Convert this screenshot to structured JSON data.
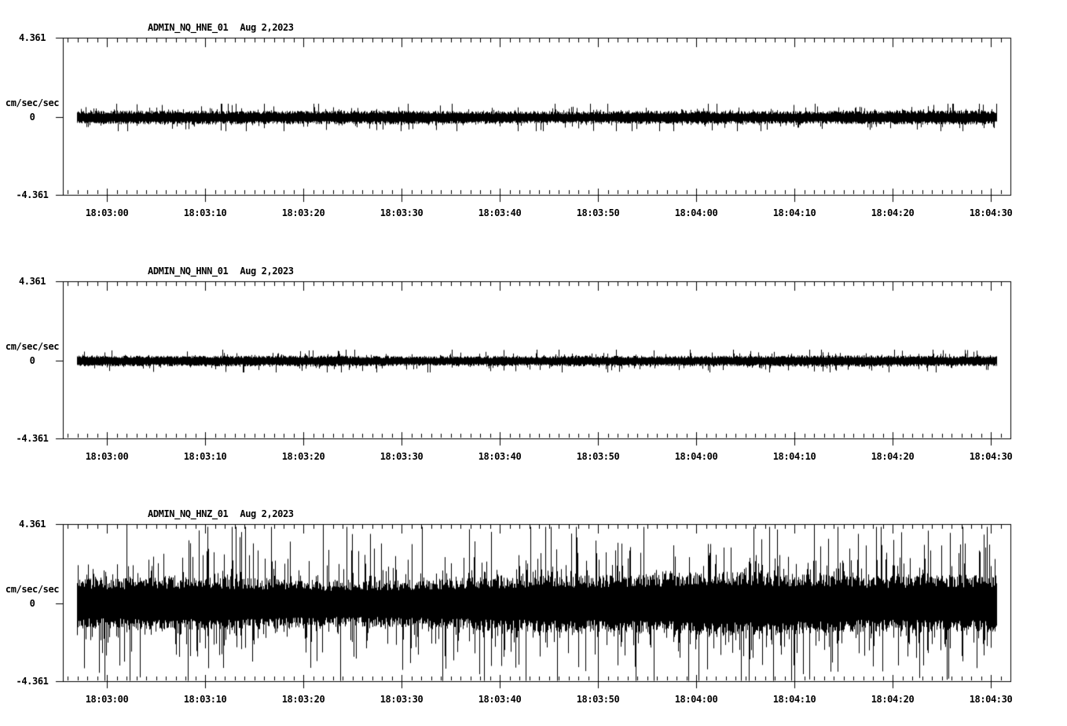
{
  "figure": {
    "background_color": "#ffffff",
    "ink_color": "#000000"
  },
  "chart_data": [
    {
      "type": "line",
      "title": "ADMIN_NQ_HNE_01",
      "subtitle": "Aug 2,2023",
      "ylabel": "cm/sec/sec",
      "ylim": [
        -4.361,
        4.361
      ],
      "yticks": [
        4.361,
        0,
        -4.361
      ],
      "ytick_labels": [
        "4.361",
        "0",
        "-4.361"
      ],
      "xtick_labels": [
        "18:03:00",
        "18:03:10",
        "18:03:20",
        "18:03:30",
        "18:03:40",
        "18:03:50",
        "18:04:00",
        "18:04:10",
        "18:04:20",
        "18:04:30"
      ],
      "x_major_interval_seconds": 10,
      "x_minor_interval_seconds": 1,
      "grid": false,
      "legend": false,
      "series": [
        {
          "name": "ADMIN_NQ_HNE_01",
          "kind": "continuous seismic noise (min/max envelope)",
          "mean_value": 0,
          "baseline_amplitude": 0.17,
          "jitter_amplitude": 0.17,
          "spike_probability": 0.15,
          "spike_scale": 0.25,
          "peak_amplitude": 0.74,
          "ramp_gain": 0,
          "seed": 11
        }
      ]
    },
    {
      "type": "line",
      "title": "ADMIN_NQ_HNN_01",
      "subtitle": "Aug 2,2023",
      "ylabel": "cm/sec/sec",
      "ylim": [
        -4.361,
        4.361
      ],
      "yticks": [
        4.361,
        0,
        -4.361
      ],
      "ytick_labels": [
        "4.361",
        "0",
        "-4.361"
      ],
      "xtick_labels": [
        "18:03:00",
        "18:03:10",
        "18:03:20",
        "18:03:30",
        "18:03:40",
        "18:03:50",
        "18:04:00",
        "18:04:10",
        "18:04:20",
        "18:04:30"
      ],
      "x_major_interval_seconds": 10,
      "x_minor_interval_seconds": 1,
      "grid": false,
      "legend": false,
      "series": [
        {
          "name": "ADMIN_NQ_HNN_01",
          "kind": "continuous seismic noise (min/max envelope)",
          "mean_value": 0,
          "baseline_amplitude": 0.14,
          "jitter_amplitude": 0.13,
          "spike_probability": 0.13,
          "spike_scale": 0.21,
          "peak_amplitude": 0.61,
          "ramp_gain": 0,
          "seed": 22
        }
      ]
    },
    {
      "type": "line",
      "title": "ADMIN_NQ_HNZ_01",
      "subtitle": "Aug 2,2023",
      "ylabel": "cm/sec/sec",
      "ylim": [
        -4.361,
        4.361
      ],
      "yticks": [
        4.361,
        0,
        -4.361
      ],
      "ytick_labels": [
        "4.361",
        "0",
        "-4.361"
      ],
      "xtick_labels": [
        "18:03:00",
        "18:03:10",
        "18:03:20",
        "18:03:30",
        "18:03:40",
        "18:03:50",
        "18:04:00",
        "18:04:10",
        "18:04:20",
        "18:04:30"
      ],
      "x_major_interval_seconds": 10,
      "x_minor_interval_seconds": 1,
      "grid": false,
      "legend": false,
      "series": [
        {
          "name": "ADMIN_NQ_HNZ_01",
          "kind": "continuous seismic noise (min/max envelope)",
          "mean_value": 0,
          "baseline_amplitude": 0.78,
          "jitter_amplitude": 0.62,
          "spike_probability": 0.32,
          "spike_scale": 1.15,
          "peak_amplitude": 4.25,
          "ramp_gain": 0.14,
          "seed": 33
        }
      ]
    }
  ]
}
